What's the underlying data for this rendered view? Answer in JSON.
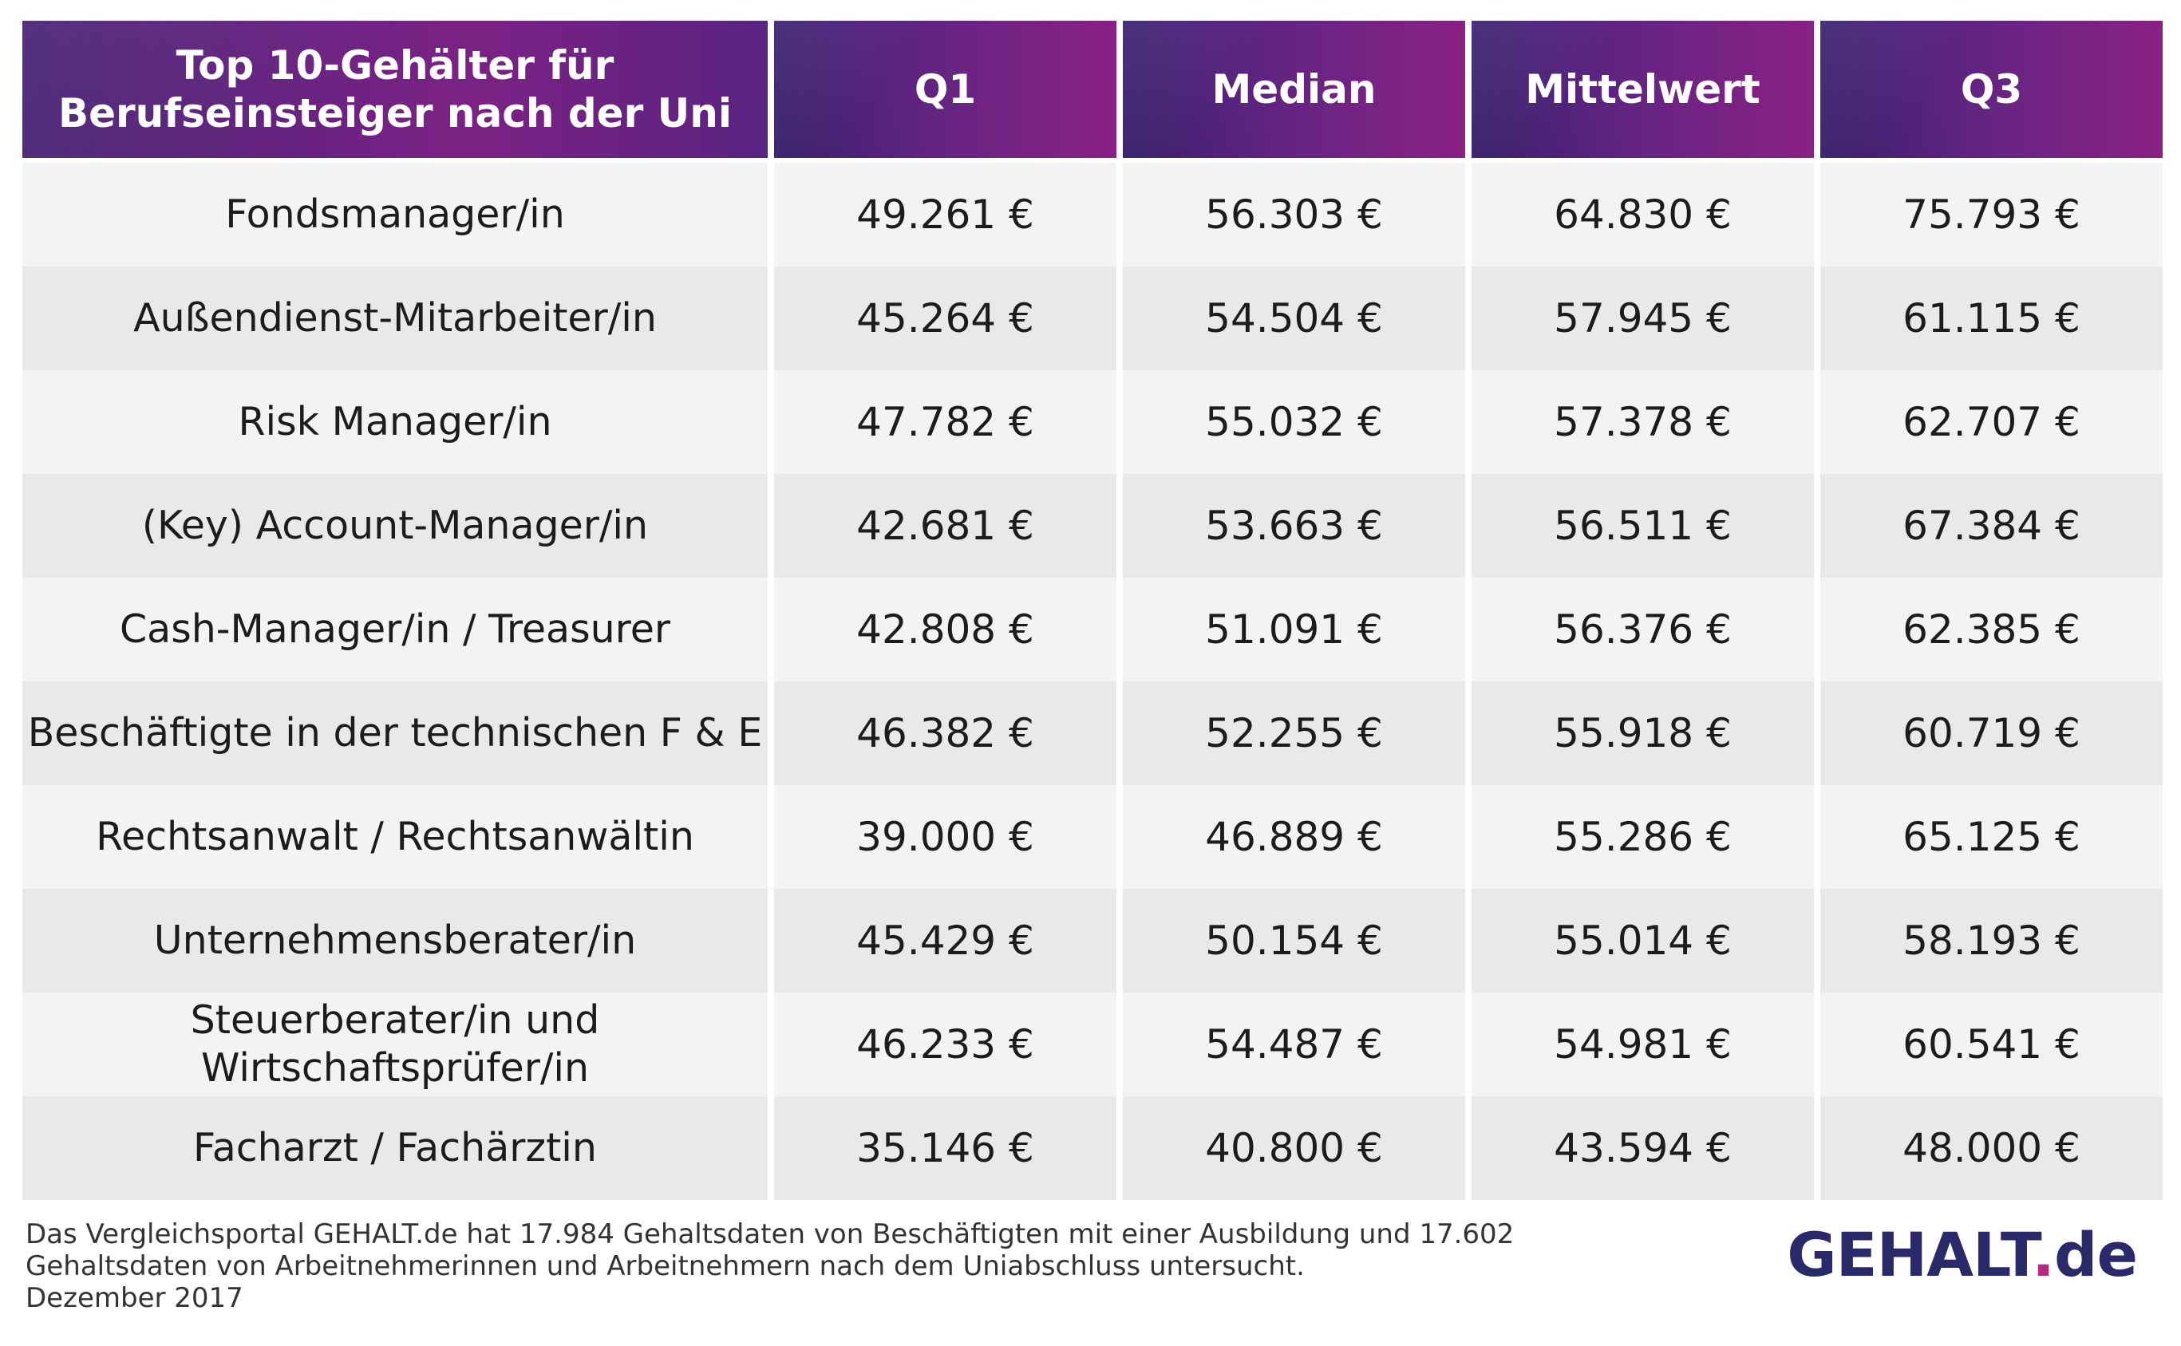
{
  "chart_data": {
    "type": "table",
    "columns": [
      "Top 10-Gehälter für Berufseinsteiger nach der Uni",
      "Q1",
      "Median",
      "Mittelwert",
      "Q3"
    ],
    "header_lines": [
      "Top 10-Gehälter für",
      "Berufseinsteiger nach der Uni"
    ],
    "rows": [
      {
        "job_lines": [
          "Fondsmanager/in"
        ],
        "values": [
          "49.261 €",
          "56.303 €",
          "64.830 €",
          "75.793 €"
        ]
      },
      {
        "job_lines": [
          "Außendienst-Mitarbeiter/in"
        ],
        "values": [
          "45.264 €",
          "54.504 €",
          "57.945 €",
          "61.115 €"
        ]
      },
      {
        "job_lines": [
          "Risk Manager/in"
        ],
        "values": [
          "47.782 €",
          "55.032 €",
          "57.378 €",
          "62.707 €"
        ]
      },
      {
        "job_lines": [
          "(Key) Account-Manager/in"
        ],
        "values": [
          "42.681 €",
          "53.663 €",
          "56.511 €",
          "67.384 €"
        ]
      },
      {
        "job_lines": [
          "Cash-Manager/in / Treasurer"
        ],
        "values": [
          "42.808 €",
          "51.091 €",
          "56.376 €",
          "62.385 €"
        ]
      },
      {
        "job_lines": [
          "Beschäftigte in der technischen F & E"
        ],
        "values": [
          "46.382 €",
          "52.255 €",
          "55.918 €",
          "60.719 €"
        ]
      },
      {
        "job_lines": [
          "Rechtsanwalt / Rechtsanwältin"
        ],
        "values": [
          "39.000 €",
          "46.889 €",
          "55.286 €",
          "65.125 €"
        ]
      },
      {
        "job_lines": [
          "Unternehmensberater/in"
        ],
        "values": [
          "45.429 €",
          "50.154 €",
          "55.014 €",
          "58.193 €"
        ]
      },
      {
        "job_lines": [
          "Steuerberater/in und",
          "Wirtschaftsprüfer/in"
        ],
        "values": [
          "46.233 €",
          "54.487 €",
          "54.981 €",
          "60.541 €"
        ]
      },
      {
        "job_lines": [
          "Facharzt / Fachärztin"
        ],
        "values": [
          "35.146 €",
          "40.800 €",
          "43.594 €",
          "48.000 €"
        ]
      }
    ]
  },
  "footnote": {
    "lines": [
      "Das Vergleichsportal GEHALT.de hat 17.984 Gehaltsdaten von Beschäftigten mit einer Ausbildung und 17.602",
      "Gehaltsdaten von Arbeitnehmerinnen und Arbeitnehmern nach dem Uniabschluss untersucht.",
      "Dezember 2017"
    ]
  },
  "logo": {
    "brand": "GEHALT",
    "dot": ".",
    "tld": "de"
  },
  "colors": {
    "header_start": "#3f2478",
    "header_end": "#8a2185",
    "row_light": "#f3f3f3",
    "row_dark": "#e9e9e9",
    "logo_text": "#2a2a6a",
    "logo_dot": "#b2297f"
  }
}
